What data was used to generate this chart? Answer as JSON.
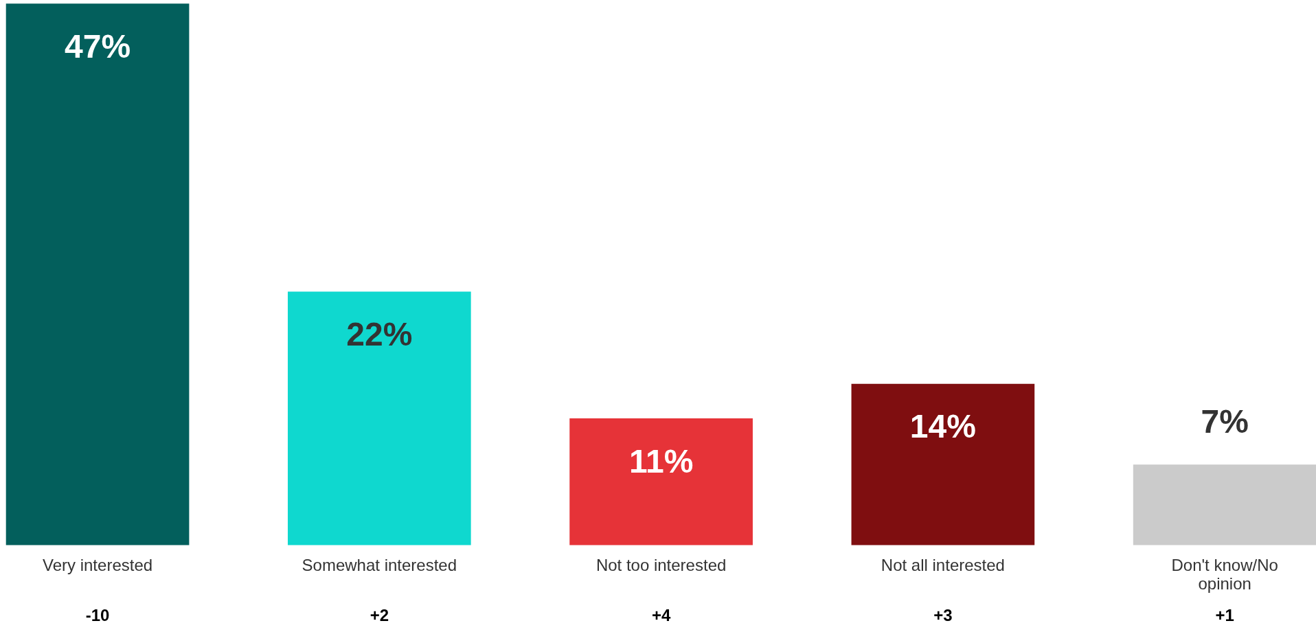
{
  "chart_data": {
    "type": "bar",
    "categories": [
      "Very interested",
      "Somewhat interested",
      "Not too interested",
      "Not all interested",
      "Don't know/No opinion"
    ],
    "values": [
      47,
      22,
      11,
      14,
      7
    ],
    "colors": [
      "#035f5c",
      "#0fd8cf",
      "#e63338",
      "#7f0e10",
      "#cbcbcb"
    ],
    "value_labels": [
      "47%",
      "22%",
      "11%",
      "14%",
      "7%"
    ],
    "annotations": [
      "-10",
      "+2",
      "+4",
      "+3",
      "+1"
    ]
  }
}
